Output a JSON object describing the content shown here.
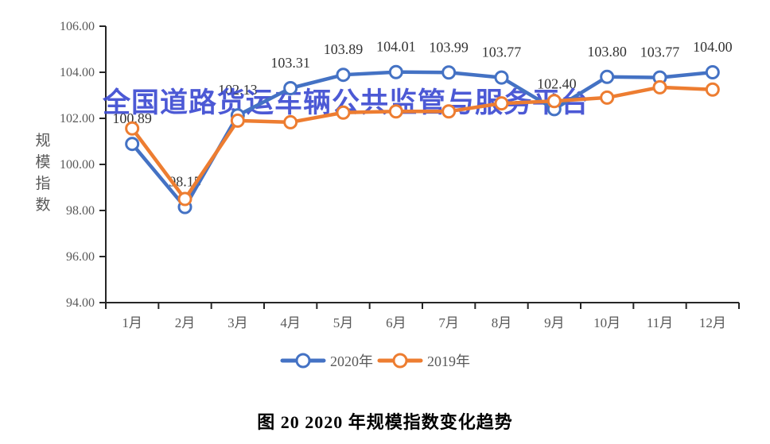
{
  "watermark": {
    "text": "全国道路货运车辆公共监管与服务平台",
    "color": "#3d4cd2"
  },
  "caption": "图 20 2020 年规模指数变化趋势",
  "chart_data": {
    "type": "line",
    "title": "",
    "xlabel": "",
    "ylabel": "规模指数",
    "categories": [
      "1月",
      "2月",
      "3月",
      "4月",
      "5月",
      "6月",
      "7月",
      "8月",
      "9月",
      "10月",
      "11月",
      "12月"
    ],
    "series": [
      {
        "name": "2020年",
        "color": "#4472C4",
        "values": [
          100.89,
          98.15,
          102.13,
          103.31,
          103.89,
          104.01,
          103.99,
          103.77,
          102.4,
          103.8,
          103.77,
          104.0
        ],
        "labels": [
          "100.89",
          "98.15",
          "102.13",
          "103.31",
          "103.89",
          "104.01",
          "103.99",
          "103.77",
          "102.40",
          "103.80",
          "103.77",
          "104.00"
        ]
      },
      {
        "name": "2019年",
        "color": "#ED7D31",
        "values_estimated": true,
        "values": [
          101.56,
          98.5,
          101.9,
          101.83,
          102.25,
          102.3,
          102.3,
          102.65,
          102.75,
          102.9,
          103.35,
          103.25
        ]
      }
    ],
    "ylim": [
      94,
      106
    ],
    "yticks": [
      "94.00",
      "96.00",
      "98.00",
      "100.00",
      "102.00",
      "104.00",
      "106.00"
    ],
    "grid": false,
    "legend_position": "bottom",
    "legend": [
      {
        "label": "2020年",
        "color": "#4472C4"
      },
      {
        "label": "2019年",
        "color": "#ED7D31"
      }
    ]
  }
}
